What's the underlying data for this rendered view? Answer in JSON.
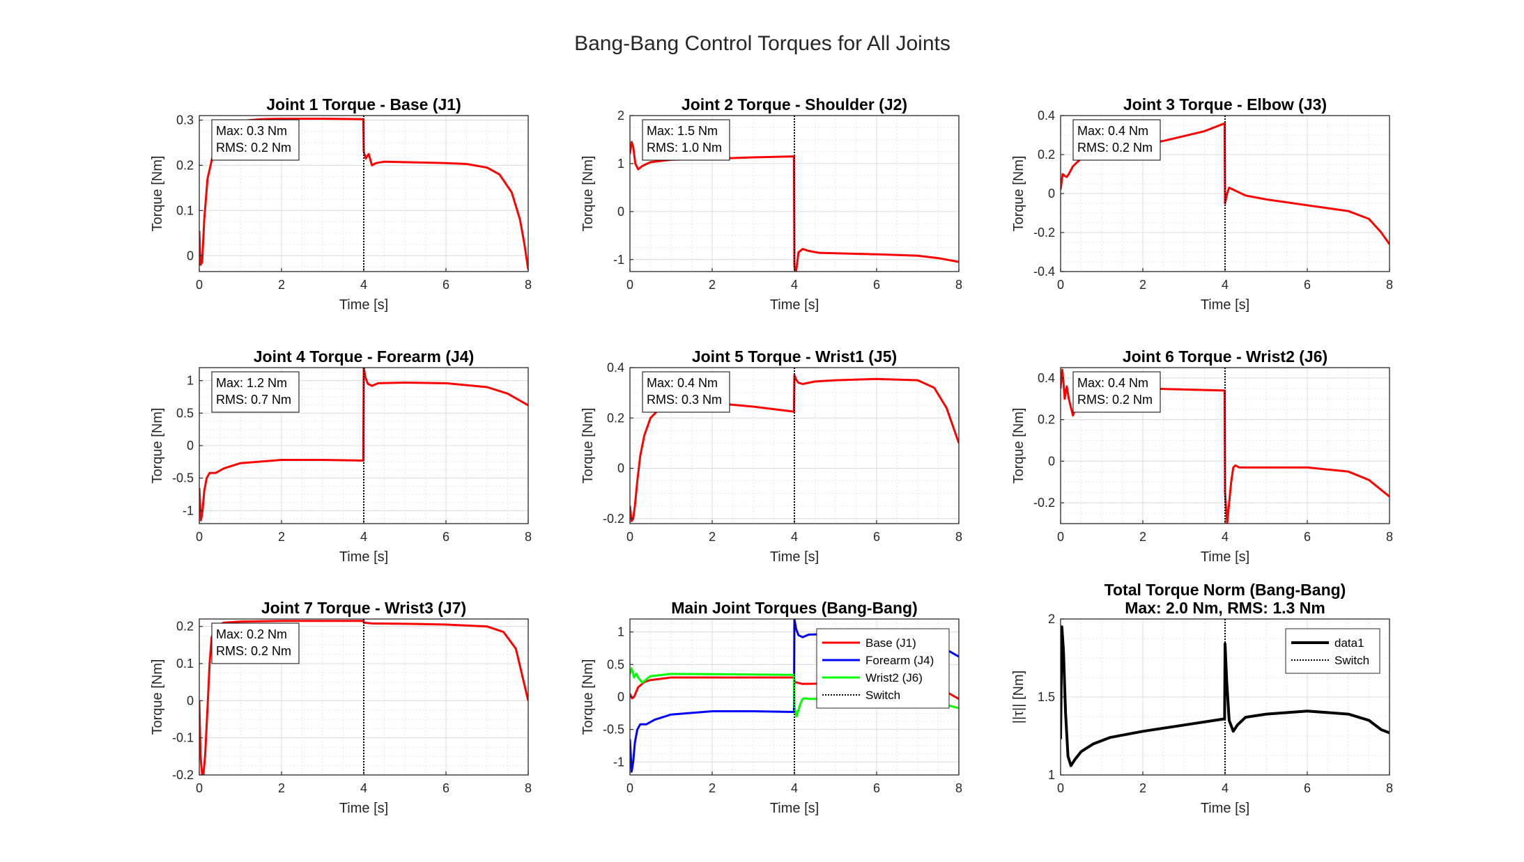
{
  "figure": {
    "suptitle": "Bang-Bang Control Torques for All Joints"
  },
  "chart_data": [
    {
      "type": "line",
      "title": "Joint 1 Torque - Base (J1)",
      "xlabel": "Time [s]",
      "ylabel": "Torque [Nm]",
      "xlim": [
        0,
        8
      ],
      "ylim": [
        -0.035,
        0.31
      ],
      "xticks": [
        0,
        2,
        4,
        6,
        8
      ],
      "yticks": [
        0,
        0.1,
        0.2,
        0.3
      ],
      "grid": true,
      "annotation": [
        "Max: 0.3 Nm",
        "RMS: 0.2 Nm"
      ],
      "switch_time": 4,
      "series": [
        {
          "color": "#ff0000",
          "linewidth": 3,
          "x": [
            0,
            0.03,
            0.07,
            0.12,
            0.2,
            0.35,
            0.5,
            0.7,
            1.0,
            1.5,
            2.0,
            3.0,
            3.99,
            4.0,
            4.05,
            4.12,
            4.2,
            4.3,
            4.5,
            5.0,
            6.0,
            6.5,
            7.0,
            7.3,
            7.6,
            7.8,
            7.9,
            8.0
          ],
          "y": [
            0.055,
            -0.02,
            -0.015,
            0.08,
            0.17,
            0.23,
            0.26,
            0.285,
            0.298,
            0.302,
            0.303,
            0.303,
            0.302,
            0.23,
            0.215,
            0.225,
            0.2,
            0.205,
            0.208,
            0.207,
            0.205,
            0.203,
            0.195,
            0.18,
            0.14,
            0.08,
            0.03,
            -0.03
          ]
        }
      ]
    },
    {
      "type": "line",
      "title": "Joint 2 Torque - Shoulder (J2)",
      "xlabel": "Time [s]",
      "ylabel": "Torque [Nm]",
      "xlim": [
        0,
        8
      ],
      "ylim": [
        -1.25,
        2
      ],
      "xticks": [
        0,
        2,
        4,
        6,
        8
      ],
      "yticks": [
        -1,
        0,
        1,
        2
      ],
      "grid": true,
      "annotation": [
        "Max: 1.5 Nm",
        "RMS: 1.0 Nm"
      ],
      "switch_time": 4,
      "series": [
        {
          "color": "#ff0000",
          "linewidth": 3,
          "x": [
            0,
            0.04,
            0.08,
            0.13,
            0.2,
            0.3,
            0.5,
            1.0,
            2.0,
            3.0,
            3.99,
            4.0,
            4.04,
            4.1,
            4.2,
            4.35,
            4.6,
            5.0,
            6.0,
            7.0,
            7.5,
            8.0
          ],
          "y": [
            1.2,
            1.45,
            1.35,
            1.0,
            0.88,
            0.95,
            1.03,
            1.08,
            1.1,
            1.13,
            1.15,
            -1.15,
            -1.25,
            -0.85,
            -0.78,
            -0.82,
            -0.86,
            -0.87,
            -0.89,
            -0.92,
            -0.97,
            -1.05
          ]
        }
      ]
    },
    {
      "type": "line",
      "title": "Joint 3 Torque - Elbow (J3)",
      "xlabel": "Time [s]",
      "ylabel": "Torque [Nm]",
      "xlim": [
        0,
        8
      ],
      "ylim": [
        -0.4,
        0.4
      ],
      "xticks": [
        0,
        2,
        4,
        6,
        8
      ],
      "yticks": [
        -0.4,
        -0.2,
        0,
        0.2,
        0.4
      ],
      "grid": true,
      "annotation": [
        "Max: 0.4 Nm",
        "RMS: 0.2 Nm"
      ],
      "switch_time": 4,
      "series": [
        {
          "color": "#ff0000",
          "linewidth": 3,
          "x": [
            0,
            0.05,
            0.1,
            0.15,
            0.2,
            0.3,
            0.5,
            0.8,
            1.5,
            2.5,
            3.5,
            3.99,
            4.0,
            4.05,
            4.1,
            4.2,
            4.5,
            5.0,
            6.0,
            7.0,
            7.5,
            7.8,
            8.0
          ],
          "y": [
            0.02,
            0.1,
            0.09,
            0.085,
            0.1,
            0.14,
            0.18,
            0.2,
            0.23,
            0.27,
            0.32,
            0.36,
            -0.05,
            0.0,
            0.03,
            0.02,
            -0.01,
            -0.03,
            -0.06,
            -0.09,
            -0.13,
            -0.2,
            -0.26
          ]
        }
      ]
    },
    {
      "type": "line",
      "title": "Joint 4 Torque - Forearm (J4)",
      "xlabel": "Time [s]",
      "ylabel": "Torque [Nm]",
      "xlim": [
        0,
        8
      ],
      "ylim": [
        -1.2,
        1.2
      ],
      "xticks": [
        0,
        2,
        4,
        6,
        8
      ],
      "yticks": [
        -1,
        -0.5,
        0,
        0.5,
        1
      ],
      "grid": true,
      "annotation": [
        "Max: 1.2 Nm",
        "RMS: 0.7 Nm"
      ],
      "switch_time": 4,
      "series": [
        {
          "color": "#ff0000",
          "linewidth": 3,
          "x": [
            0,
            0.04,
            0.08,
            0.12,
            0.18,
            0.25,
            0.4,
            0.6,
            1.0,
            2.0,
            3.0,
            3.99,
            4.0,
            4.04,
            4.1,
            4.2,
            4.35,
            5.0,
            6.0,
            7.0,
            7.5,
            8.0
          ],
          "y": [
            -0.65,
            -1.15,
            -1.0,
            -0.7,
            -0.5,
            -0.42,
            -0.42,
            -0.35,
            -0.27,
            -0.22,
            -0.22,
            -0.23,
            1.2,
            1.05,
            0.95,
            0.92,
            0.96,
            0.97,
            0.96,
            0.9,
            0.8,
            0.62
          ]
        }
      ]
    },
    {
      "type": "line",
      "title": "Joint 5 Torque - Wrist1 (J5)",
      "xlabel": "Time [s]",
      "ylabel": "Torque [Nm]",
      "xlim": [
        0,
        8
      ],
      "ylim": [
        -0.22,
        0.4
      ],
      "xticks": [
        0,
        2,
        4,
        6,
        8
      ],
      "yticks": [
        -0.2,
        0,
        0.2,
        0.4
      ],
      "grid": true,
      "annotation": [
        "Max: 0.4 Nm",
        "RMS: 0.3 Nm"
      ],
      "switch_time": 4,
      "series": [
        {
          "color": "#ff0000",
          "linewidth": 3,
          "x": [
            0,
            0.04,
            0.08,
            0.12,
            0.18,
            0.25,
            0.35,
            0.5,
            0.8,
            1.0,
            2.0,
            3.0,
            3.99,
            4.0,
            4.05,
            4.1,
            4.2,
            4.5,
            5.0,
            6.0,
            7.0,
            7.4,
            7.7,
            8.0
          ],
          "y": [
            -0.15,
            -0.21,
            -0.2,
            -0.15,
            -0.05,
            0.05,
            0.13,
            0.2,
            0.25,
            0.27,
            0.26,
            0.245,
            0.225,
            0.37,
            0.35,
            0.34,
            0.335,
            0.345,
            0.35,
            0.355,
            0.35,
            0.32,
            0.24,
            0.1
          ]
        }
      ]
    },
    {
      "type": "line",
      "title": "Joint 6 Torque - Wrist2 (J6)",
      "xlabel": "Time [s]",
      "ylabel": "Torque [Nm]",
      "xlim": [
        0,
        8
      ],
      "ylim": [
        -0.3,
        0.45
      ],
      "xticks": [
        0,
        2,
        4,
        6,
        8
      ],
      "yticks": [
        -0.2,
        0,
        0.2,
        0.4
      ],
      "grid": true,
      "annotation": [
        "Max: 0.4 Nm",
        "RMS: 0.2 Nm"
      ],
      "switch_time": 4,
      "series": [
        {
          "color": "#ff0000",
          "linewidth": 3,
          "x": [
            0,
            0.04,
            0.07,
            0.1,
            0.15,
            0.2,
            0.3,
            0.5,
            1.0,
            2.0,
            3.0,
            3.99,
            4.0,
            4.05,
            4.1,
            4.15,
            4.2,
            4.25,
            4.35,
            5.0,
            6.0,
            7.0,
            7.5,
            8.0
          ],
          "y": [
            0.35,
            0.44,
            0.38,
            0.3,
            0.36,
            0.3,
            0.22,
            0.32,
            0.355,
            0.35,
            0.345,
            0.34,
            -0.15,
            -0.3,
            -0.2,
            -0.1,
            -0.03,
            -0.02,
            -0.03,
            -0.03,
            -0.03,
            -0.05,
            -0.09,
            -0.17
          ]
        }
      ]
    },
    {
      "type": "line",
      "title": "Joint 7 Torque - Wrist3 (J7)",
      "xlabel": "Time [s]",
      "ylabel": "Torque [Nm]",
      "xlim": [
        0,
        8
      ],
      "ylim": [
        -0.2,
        0.22
      ],
      "xticks": [
        0,
        2,
        4,
        6,
        8
      ],
      "yticks": [
        -0.2,
        -0.1,
        0,
        0.1,
        0.2
      ],
      "grid": true,
      "annotation": [
        "Max: 0.2 Nm",
        "RMS: 0.2 Nm"
      ],
      "switch_time": 4,
      "series": [
        {
          "color": "#ff0000",
          "linewidth": 3,
          "x": [
            0,
            0.03,
            0.07,
            0.1,
            0.14,
            0.2,
            0.25,
            0.3,
            0.4,
            0.6,
            1.0,
            2.0,
            3.0,
            3.99,
            4.0,
            4.2,
            5.0,
            6.0,
            7.0,
            7.4,
            7.7,
            8.0
          ],
          "y": [
            0,
            -0.15,
            -0.2,
            -0.2,
            -0.15,
            -0.02,
            0.1,
            0.17,
            0.2,
            0.21,
            0.213,
            0.215,
            0.215,
            0.215,
            0.21,
            0.208,
            0.207,
            0.205,
            0.2,
            0.185,
            0.14,
            0.0
          ]
        }
      ]
    },
    {
      "type": "line",
      "title": "Main Joint Torques (Bang-Bang)",
      "xlabel": "Time [s]",
      "ylabel": "Torque [Nm]",
      "xlim": [
        0,
        8
      ],
      "ylim": [
        -1.2,
        1.2
      ],
      "xticks": [
        0,
        2,
        4,
        6,
        8
      ],
      "yticks": [
        -1,
        -0.5,
        0,
        0.5,
        1
      ],
      "grid": true,
      "legend": {
        "position": "top-right",
        "entries": [
          "Base (J1)",
          "Forearm (J4)",
          "Wrist2 (J6)",
          "Switch"
        ]
      },
      "switch_time": 4,
      "series": [
        {
          "name": "Base (J1)",
          "color": "#ff0000",
          "linewidth": 3,
          "x": [
            0,
            0.05,
            0.1,
            0.2,
            0.35,
            0.5,
            1.0,
            2.0,
            3.0,
            3.99,
            4.0,
            4.2,
            5.0,
            6.0,
            7.0,
            7.5,
            8.0
          ],
          "y": [
            0.05,
            -0.02,
            0.0,
            0.15,
            0.23,
            0.26,
            0.3,
            0.3,
            0.3,
            0.3,
            0.23,
            0.2,
            0.21,
            0.21,
            0.2,
            0.15,
            -0.03
          ]
        },
        {
          "name": "Forearm (J4)",
          "color": "#0000ff",
          "linewidth": 3,
          "x": [
            0,
            0.04,
            0.08,
            0.12,
            0.18,
            0.25,
            0.4,
            0.6,
            1.0,
            2.0,
            3.0,
            3.99,
            4.0,
            4.04,
            4.1,
            4.2,
            4.35,
            5.0,
            6.0,
            7.0,
            7.5,
            8.0
          ],
          "y": [
            -0.65,
            -1.15,
            -1.0,
            -0.7,
            -0.5,
            -0.42,
            -0.42,
            -0.35,
            -0.27,
            -0.22,
            -0.22,
            -0.23,
            1.2,
            1.05,
            0.95,
            0.92,
            0.96,
            0.97,
            0.96,
            0.9,
            0.8,
            0.62
          ]
        },
        {
          "name": "Wrist2 (J6)",
          "color": "#00ff00",
          "linewidth": 3,
          "x": [
            0,
            0.04,
            0.07,
            0.1,
            0.15,
            0.2,
            0.3,
            0.5,
            1.0,
            2.0,
            3.0,
            3.99,
            4.0,
            4.05,
            4.1,
            4.15,
            4.2,
            4.25,
            4.35,
            5.0,
            6.0,
            7.0,
            7.5,
            8.0
          ],
          "y": [
            0.35,
            0.44,
            0.38,
            0.3,
            0.36,
            0.3,
            0.22,
            0.32,
            0.355,
            0.35,
            0.345,
            0.34,
            -0.15,
            -0.3,
            -0.2,
            -0.1,
            -0.03,
            -0.02,
            -0.03,
            -0.03,
            -0.03,
            -0.05,
            -0.09,
            -0.17
          ]
        }
      ]
    },
    {
      "type": "line",
      "title": "Total Torque Norm (Bang-Bang)",
      "subtitle": "Max: 2.0 Nm, RMS: 1.3 Nm",
      "xlabel": "Time [s]",
      "ylabel": "||τ|| [Nm]",
      "xlim": [
        0,
        8
      ],
      "ylim": [
        1,
        2
      ],
      "xticks": [
        0,
        2,
        4,
        6,
        8
      ],
      "yticks": [
        1,
        1.5,
        2
      ],
      "grid": true,
      "legend": {
        "position": "top-right",
        "entries": [
          "data1",
          "Switch"
        ]
      },
      "switch_time": 4,
      "series": [
        {
          "name": "data1",
          "color": "#000000",
          "linewidth": 4,
          "x": [
            0,
            0.03,
            0.07,
            0.12,
            0.18,
            0.25,
            0.35,
            0.5,
            0.8,
            1.2,
            2.0,
            3.0,
            3.99,
            4.0,
            4.04,
            4.1,
            4.2,
            4.3,
            4.5,
            5.0,
            6.0,
            7.0,
            7.5,
            7.8,
            8.0
          ],
          "y": [
            1.23,
            1.95,
            1.8,
            1.4,
            1.12,
            1.06,
            1.1,
            1.15,
            1.2,
            1.24,
            1.28,
            1.32,
            1.36,
            1.84,
            1.6,
            1.35,
            1.28,
            1.32,
            1.37,
            1.39,
            1.41,
            1.39,
            1.35,
            1.29,
            1.27
          ]
        }
      ]
    }
  ]
}
